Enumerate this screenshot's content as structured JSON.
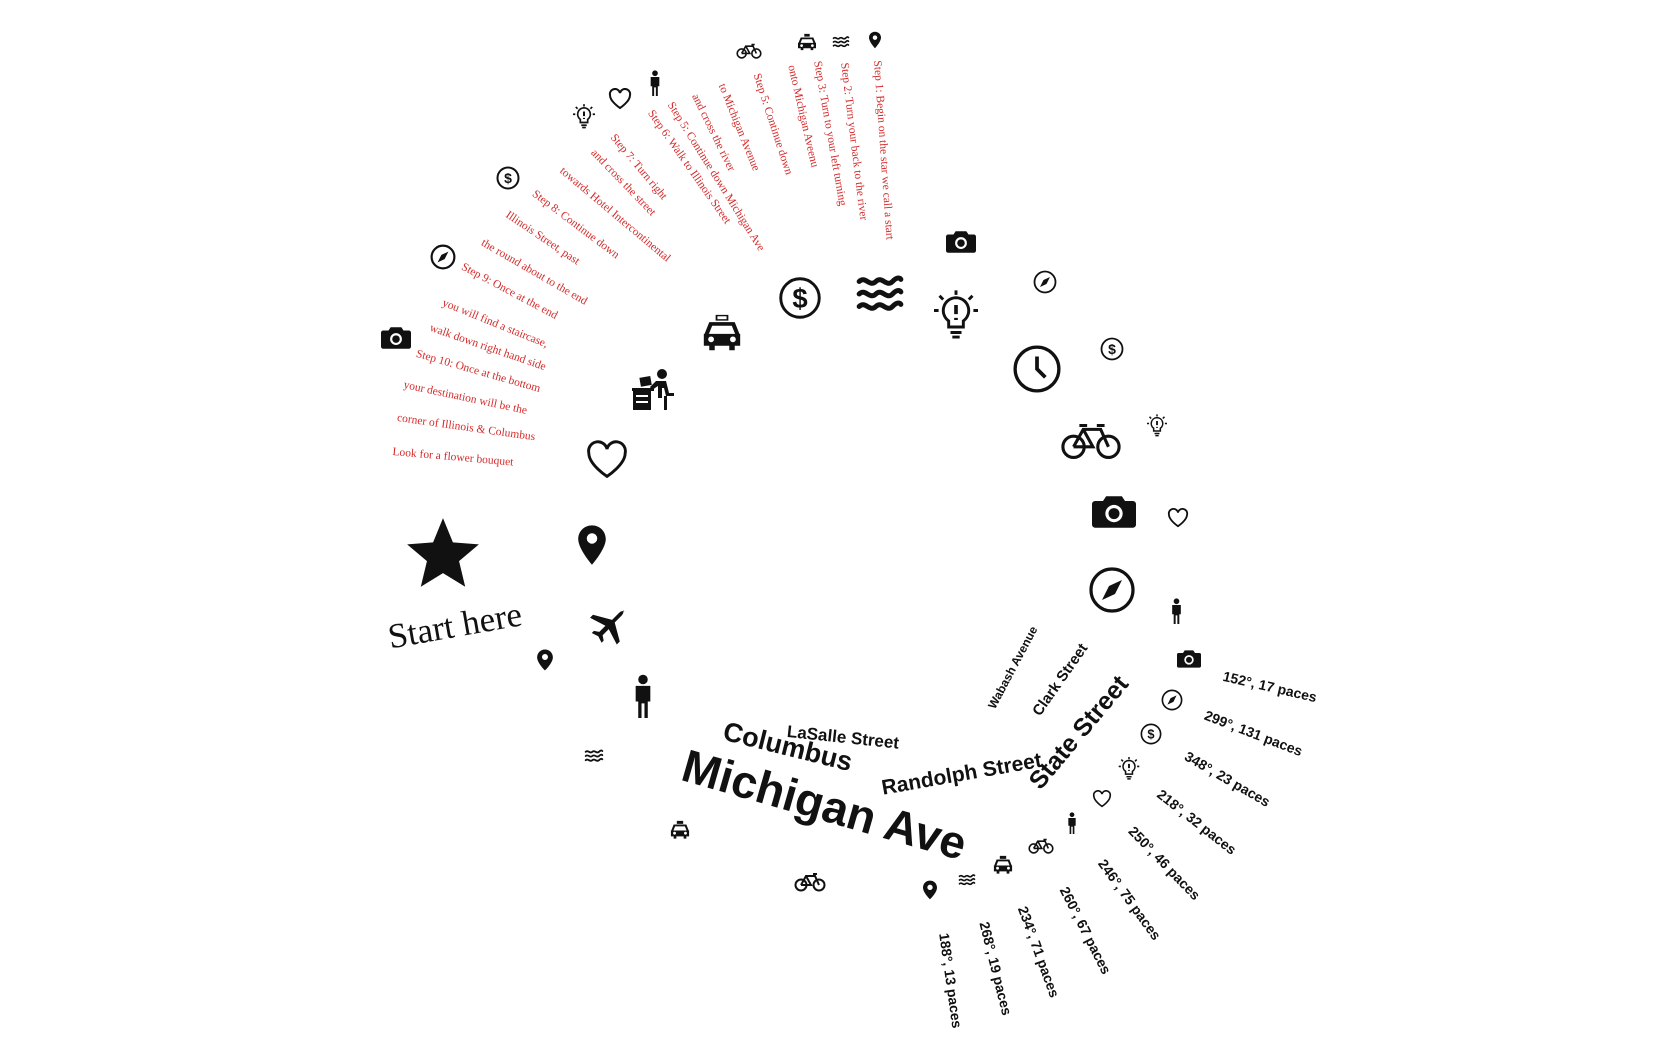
{
  "start": {
    "label": "Start here",
    "icon": "star-icon"
  },
  "steps": [
    "Step 1: Begin on the star we call a start",
    "Step 2: Turn your back to the river",
    "Step 3: Turn to your left turning",
    "onto Michigan Aveenu",
    "Step 5: Continue down",
    "to Michigan Avenue",
    "and cross the river",
    "Step 5: Continue down Michigan Ave",
    "Step 6: Walk to Illinois Street",
    "Step 7: Turn right",
    "and cross the street",
    "towards Hotel Intercontinental",
    "Step 8: Continue down",
    "Illinois Street, past",
    "the round about to the end",
    "Step 9: Once at the end",
    "you will find a staircase,",
    "walk down right hand side",
    "Step 10: Once at the bottom",
    "your destination will be the",
    "corner of Illinois & Columbus",
    "Look for a flower bouquet"
  ],
  "streets": [
    "Michigan Ave",
    "Columbus",
    "LaSalle Street",
    "Randolph Street",
    "State Street",
    "Clark Street",
    "Wabash Avenue"
  ],
  "distances": [
    "152°, 17 paces",
    "299°, 131 paces",
    "348°, 23 paces",
    "218°, 32 paces",
    "250°, 46 paces",
    "246°, 75 paces",
    "260°, 67 paces",
    "234°, 71 paces",
    "268°, 19 paces",
    "188°, 13 paces"
  ],
  "icons": {
    "top_row": [
      "pin-icon",
      "waves-icon",
      "taxi-icon",
      "bicycle-icon"
    ],
    "red_arc": [
      "person-icon",
      "heart-icon",
      "lightbulb-icon",
      "dollar-icon",
      "compass-icon",
      "camera-icon"
    ],
    "inner_arc": [
      "pin-icon",
      "heart-icon",
      "desk-worker-icon",
      "taxi-icon",
      "dollar-icon",
      "waves-icon",
      "lightbulb-icon",
      "clock-icon",
      "bicycle-icon",
      "camera-icon",
      "compass-icon"
    ],
    "outer_right": [
      "camera-icon",
      "compass-icon",
      "dollar-icon",
      "lightbulb-icon",
      "heart-icon",
      "person-icon"
    ],
    "distance_row": [
      "camera-icon",
      "compass-icon",
      "dollar-icon",
      "lightbulb-icon",
      "heart-icon",
      "person-icon",
      "bicycle-icon",
      "taxi-icon",
      "waves-icon",
      "pin-icon"
    ],
    "lower_left": [
      "airplane-icon",
      "person-icon",
      "pin-icon",
      "waves-icon",
      "taxi-icon",
      "bicycle-icon"
    ]
  },
  "colors": {
    "steps": "#d42b2b",
    "text": "#111111",
    "background": "#ffffff"
  }
}
